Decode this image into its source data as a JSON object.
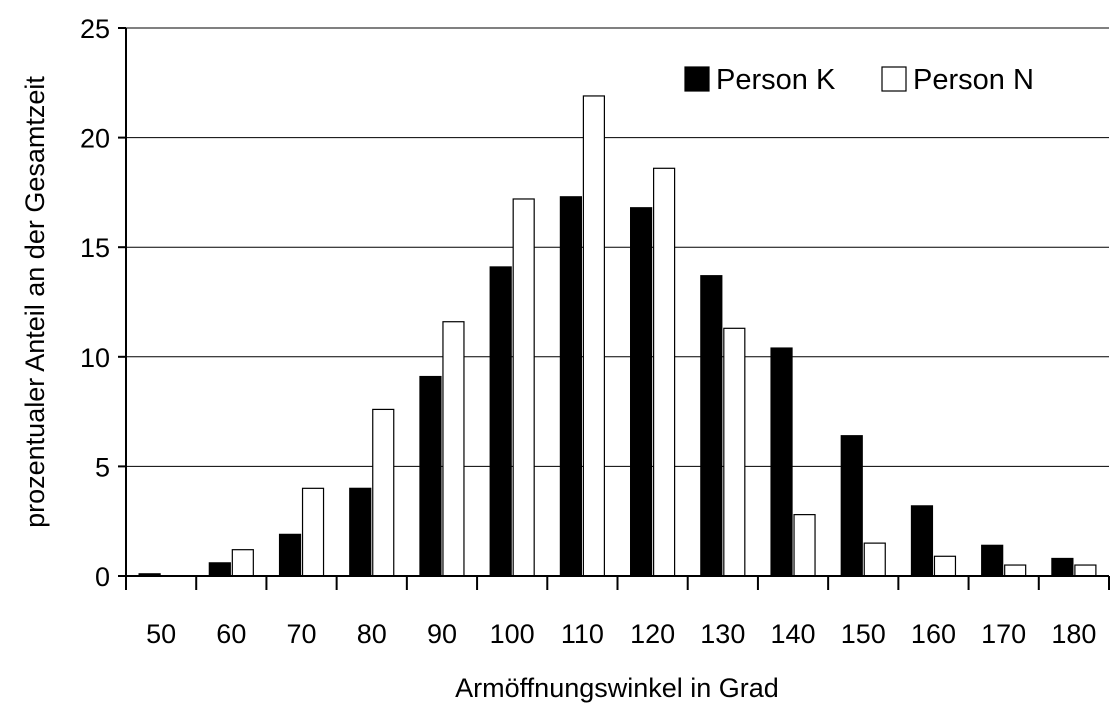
{
  "chart_data": {
    "type": "bar",
    "title": "",
    "xlabel": "Armöffnungswinkel in Grad",
    "ylabel": "prozentualer Anteil an der Gesamtzeit",
    "categories": [
      "50",
      "60",
      "70",
      "80",
      "90",
      "100",
      "110",
      "120",
      "130",
      "140",
      "150",
      "160",
      "170",
      "180"
    ],
    "series": [
      {
        "name": "Person K",
        "color": "#000000",
        "values": [
          0.1,
          0.6,
          1.9,
          4.0,
          9.1,
          14.1,
          17.3,
          16.8,
          13.7,
          10.4,
          6.4,
          3.2,
          1.4,
          0.8
        ]
      },
      {
        "name": "Person N",
        "color": "#ffffff",
        "values": [
          0.0,
          1.2,
          4.0,
          7.6,
          11.6,
          17.2,
          21.9,
          18.6,
          11.3,
          2.8,
          1.5,
          0.9,
          0.5,
          0.5
        ]
      }
    ],
    "ylim": [
      0,
      25
    ],
    "yticks": [
      0,
      5,
      10,
      15,
      20,
      25
    ],
    "grid": "horizontal",
    "legend_position": "top-right"
  }
}
